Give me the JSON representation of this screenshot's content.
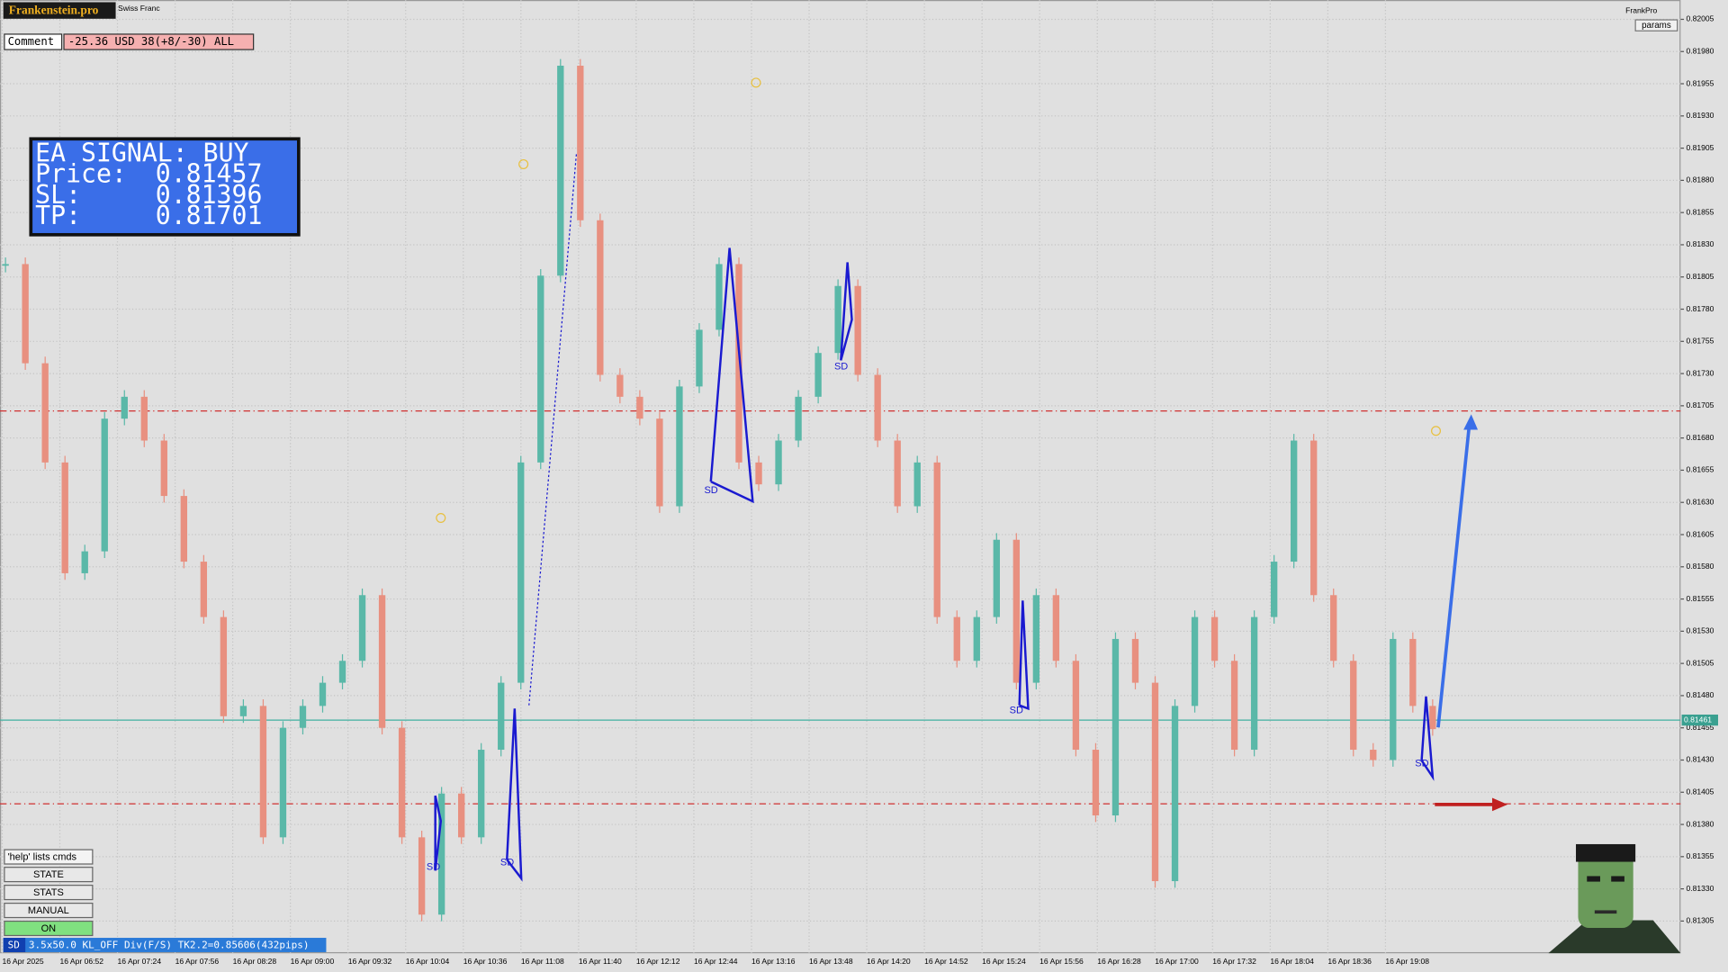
{
  "header": {
    "brand": "Frankenstein.pro",
    "symbol": "Swiss Franc",
    "account": "FrankPro",
    "params": "params"
  },
  "comment": {
    "label": "Comment",
    "text": "-25.36 USD 38(+8/-30) ALL"
  },
  "signal": {
    "title": "EA SIGNAL: BUY",
    "rows": [
      {
        "label": "Price:",
        "value": "0.81457"
      },
      {
        "label": "SL:",
        "value": "0.81396"
      },
      {
        "label": "TP:",
        "value": "0.81701"
      }
    ]
  },
  "chart": {
    "ylim": [
      0.8128,
      0.8202
    ],
    "yticks": [
      {
        "value": 0.82005,
        "label": "0.82005"
      },
      {
        "value": 0.8198,
        "label": "0.81980"
      },
      {
        "value": 0.81955,
        "label": "0.81955"
      },
      {
        "value": 0.8193,
        "label": "0.81930"
      },
      {
        "value": 0.81905,
        "label": "0.81905"
      },
      {
        "value": 0.8188,
        "label": "0.81880"
      },
      {
        "value": 0.81855,
        "label": "0.81855"
      },
      {
        "value": 0.8183,
        "label": "0.81830"
      },
      {
        "value": 0.81805,
        "label": "0.81805"
      },
      {
        "value": 0.8178,
        "label": "0.81780"
      },
      {
        "value": 0.81755,
        "label": "0.81755"
      },
      {
        "value": 0.8173,
        "label": "0.81730"
      },
      {
        "value": 0.81705,
        "label": "0.81705"
      },
      {
        "value": 0.8168,
        "label": "0.81680"
      },
      {
        "value": 0.81655,
        "label": "0.81655"
      },
      {
        "value": 0.8163,
        "label": "0.81630"
      },
      {
        "value": 0.81605,
        "label": "0.81605"
      },
      {
        "value": 0.8158,
        "label": "0.81580"
      },
      {
        "value": 0.81555,
        "label": "0.81555"
      },
      {
        "value": 0.8153,
        "label": "0.81530"
      },
      {
        "value": 0.81505,
        "label": "0.81505"
      },
      {
        "value": 0.8148,
        "label": "0.81480"
      },
      {
        "value": 0.81455,
        "label": "0.81455"
      },
      {
        "value": 0.8143,
        "label": "0.81430"
      },
      {
        "value": 0.81405,
        "label": "0.81405"
      },
      {
        "value": 0.8138,
        "label": "0.81380"
      },
      {
        "value": 0.81355,
        "label": "0.81355"
      },
      {
        "value": 0.8133,
        "label": "0.81330"
      },
      {
        "value": 0.81305,
        "label": "0.81305"
      }
    ],
    "xticks": [
      "16 Apr 2025",
      "16 Apr 06:52",
      "16 Apr 07:24",
      "16 Apr 07:56",
      "16 Apr 08:28",
      "16 Apr 09:00",
      "16 Apr 09:32",
      "16 Apr 10:04",
      "16 Apr 10:36",
      "16 Apr 11:08",
      "16 Apr 11:40",
      "16 Apr 12:12",
      "16 Apr 12:44",
      "16 Apr 13:16",
      "16 Apr 13:48",
      "16 Apr 14:20",
      "16 Apr 14:52",
      "16 Apr 15:24",
      "16 Apr 15:56",
      "16 Apr 16:28",
      "16 Apr 17:00",
      "16 Apr 17:32",
      "16 Apr 18:04",
      "16 Apr 18:36",
      "16 Apr 19:08"
    ],
    "closes": [
      0.81815,
      0.81738,
      0.81661,
      0.81575,
      0.81592,
      0.81695,
      0.81712,
      0.81678,
      0.81635,
      0.81584,
      0.81541,
      0.81464,
      0.81472,
      0.8137,
      0.81455,
      0.81472,
      0.8149,
      0.81507,
      0.81558,
      0.81455,
      0.8137,
      0.8131,
      0.81404,
      0.8137,
      0.81438,
      0.8149,
      0.81661,
      0.81806,
      0.81969,
      0.81849,
      0.81729,
      0.81712,
      0.81695,
      0.81627,
      0.8172,
      0.81764,
      0.81815,
      0.81661,
      0.81644,
      0.81678,
      0.81712,
      0.81746,
      0.81798,
      0.81729,
      0.81678,
      0.81627,
      0.81661,
      0.81541,
      0.81507,
      0.81541,
      0.81601,
      0.8149,
      0.81558,
      0.81507,
      0.81438,
      0.81387,
      0.81524,
      0.8149,
      0.81336,
      0.81472,
      0.81541,
      0.81507,
      0.81438,
      0.81541,
      0.81584,
      0.81678,
      0.81558,
      0.81507,
      0.81438,
      0.8143,
      0.81524,
      0.81472,
      0.81454
    ],
    "last_price": {
      "value": 0.81461,
      "label": "0.81461"
    },
    "pattern_labels": [
      "SD",
      "SD",
      "SD",
      "SD",
      "SD",
      "SD"
    ]
  },
  "controls": {
    "help": "'help' lists cmds",
    "buttons": [
      "STATE",
      "STATS",
      "MANUAL",
      "ON"
    ]
  },
  "status": {
    "tag": "SD",
    "text": "3.5x50.0 KL_OFF Div(F/S) TK2.2=0.85606(432pips)"
  }
}
